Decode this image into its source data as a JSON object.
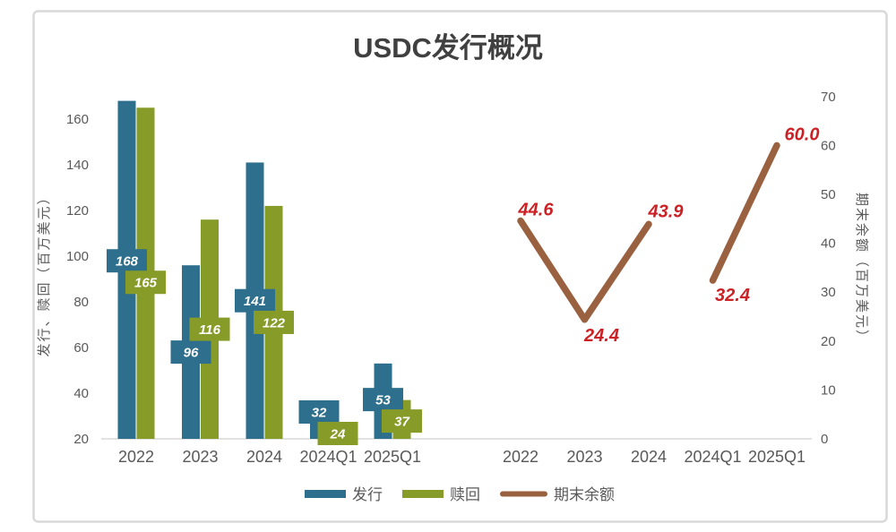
{
  "title": "USDC发行概况",
  "colors": {
    "issuance": "#2E6F8E",
    "redemption": "#879B28",
    "balance": "#9A6140",
    "balance_label": "#CC2125",
    "axis_text": "#595959",
    "title_text": "#404040",
    "axis_line": "#D9D9D9",
    "frame_border": "#D9D9D9",
    "bar_label_text": "#FFFFFF"
  },
  "chart_data": {
    "type": "combo",
    "title": "USDC发行概况",
    "categories": [
      "2022",
      "2023",
      "2024",
      "2024Q1",
      "2025Q1"
    ],
    "left_axis": {
      "label": "发行、赎回（百万美元）",
      "min": 20,
      "max": 175,
      "ticks": [
        20,
        40,
        60,
        80,
        100,
        120,
        140,
        160
      ]
    },
    "right_axis": {
      "label": "期末余额（百万美元）",
      "min": 0,
      "max": 70,
      "ticks": [
        0,
        10,
        20,
        30,
        40,
        50,
        60,
        70
      ]
    },
    "series": [
      {
        "name": "发行",
        "type": "bar",
        "color": "#2E6F8E",
        "values": [
          168,
          96,
          141,
          32,
          53
        ],
        "labels": [
          "168",
          "96",
          "141",
          "32",
          "53"
        ]
      },
      {
        "name": "赎回",
        "type": "bar",
        "color": "#879B28",
        "values": [
          165,
          116,
          122,
          24,
          37
        ],
        "labels": [
          "165",
          "116",
          "122",
          "24",
          "37"
        ]
      },
      {
        "name": "期末余额",
        "type": "line",
        "color": "#9A6140",
        "label_color": "#CC2125",
        "values": [
          44.6,
          24.4,
          43.9,
          32.4,
          60.0
        ],
        "labels": [
          "44.6",
          "24.4",
          "43.9",
          "32.4",
          "60.0"
        ],
        "segments": [
          [
            0,
            1,
            2
          ],
          [
            3,
            4
          ]
        ]
      }
    ],
    "legend": {
      "position": "bottom",
      "items": [
        "发行",
        "赎回",
        "期末余额"
      ]
    }
  }
}
